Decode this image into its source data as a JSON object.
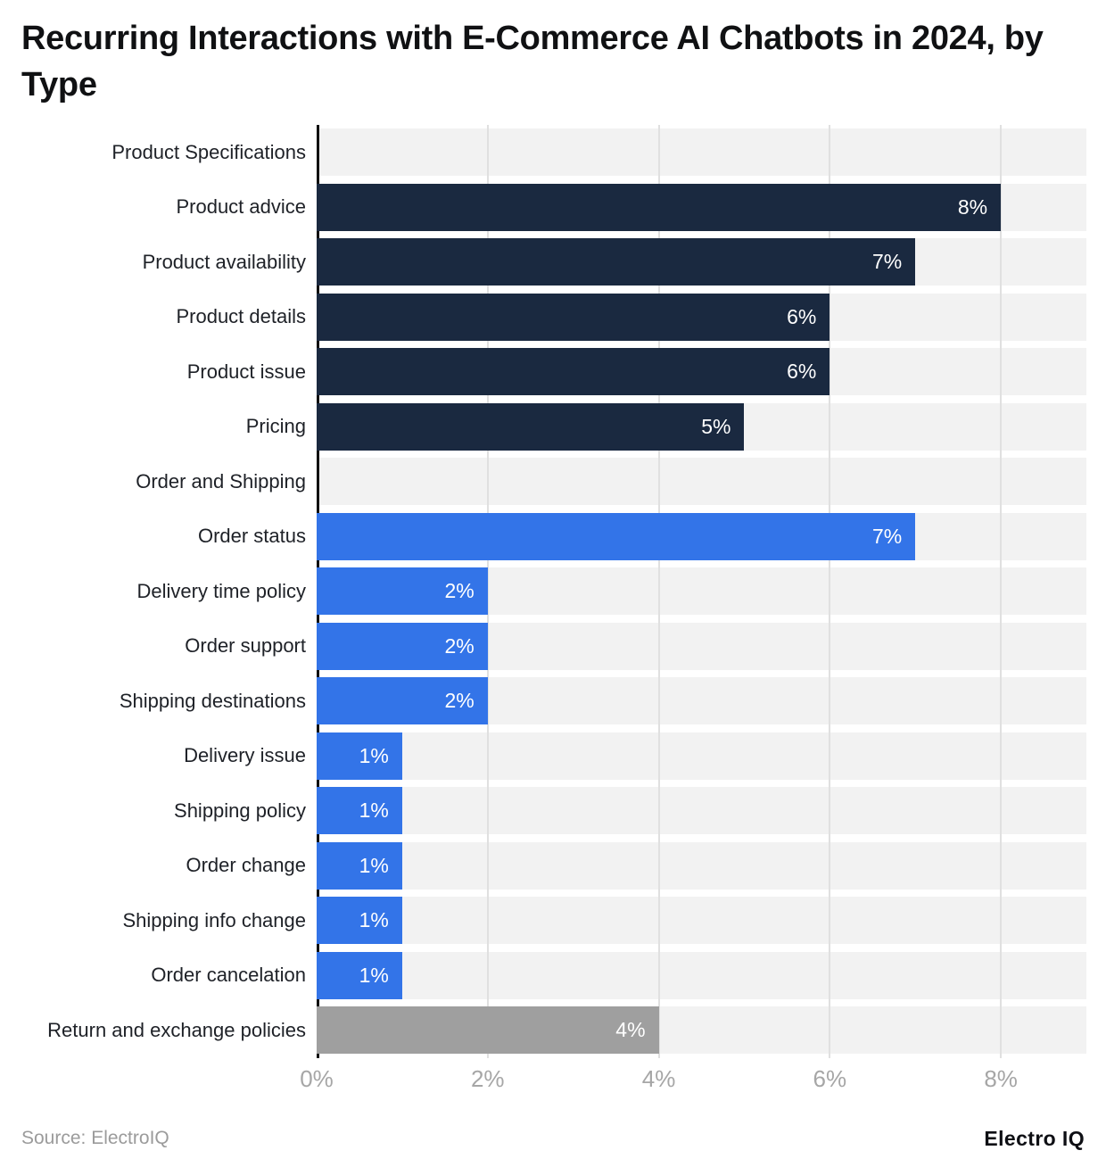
{
  "title": "Recurring Interactions with E-Commerce AI Chatbots in 2024, by Type",
  "footer": {
    "source": "Source: ElectroIQ",
    "brand": "Electro IQ"
  },
  "colors": {
    "navy": "#1a2940",
    "blue": "#3374e8",
    "gray": "#9f9f9f",
    "track": "#f2f2f2",
    "gridline": "#e0e0e0",
    "axis_line": "#111111",
    "tick_text": "#a6a6a6",
    "category_text": "#1e2127",
    "value_text": "#ffffff"
  },
  "x_axis": {
    "max": 9,
    "ticks": [
      {
        "label": "0%",
        "value": 0
      },
      {
        "label": "2%",
        "value": 2
      },
      {
        "label": "4%",
        "value": 4
      },
      {
        "label": "6%",
        "value": 6
      },
      {
        "label": "8%",
        "value": 8
      }
    ]
  },
  "chart_data": {
    "type": "bar",
    "orientation": "horizontal",
    "title": "Recurring Interactions with E-Commerce AI Chatbots in 2024, by Type",
    "xlabel": "",
    "ylabel": "",
    "xlim": [
      0,
      9
    ],
    "x_tick_labels": [
      "0%",
      "2%",
      "4%",
      "6%",
      "8%"
    ],
    "grid": true,
    "legend": false,
    "categories": [
      "Product Specifications",
      "Product advice",
      "Product availability",
      "Product details",
      "Product issue",
      "Pricing",
      "Order and Shipping",
      "Order status",
      "Delivery time policy",
      "Order support",
      "Shipping destinations",
      "Delivery issue",
      "Shipping policy",
      "Order change",
      "Shipping info change",
      "Order cancelation",
      "Return and exchange policies"
    ],
    "values": [
      null,
      8,
      7,
      6,
      6,
      5,
      null,
      7,
      2,
      2,
      2,
      1,
      1,
      1,
      1,
      1,
      4
    ],
    "bar_labels": [
      "",
      "8%",
      "7%",
      "6%",
      "6%",
      "5%",
      "",
      "7%",
      "2%",
      "2%",
      "2%",
      "1%",
      "1%",
      "1%",
      "1%",
      "1%",
      "4%"
    ],
    "bar_colors": [
      null,
      "#1a2940",
      "#1a2940",
      "#1a2940",
      "#1a2940",
      "#1a2940",
      null,
      "#3374e8",
      "#3374e8",
      "#3374e8",
      "#3374e8",
      "#3374e8",
      "#3374e8",
      "#3374e8",
      "#3374e8",
      "#3374e8",
      "#9f9f9f"
    ],
    "groups": [
      "section",
      "product",
      "product",
      "product",
      "product",
      "product",
      "section",
      "order-shipping",
      "order-shipping",
      "order-shipping",
      "order-shipping",
      "order-shipping",
      "order-shipping",
      "order-shipping",
      "order-shipping",
      "order-shipping",
      "returns"
    ]
  }
}
